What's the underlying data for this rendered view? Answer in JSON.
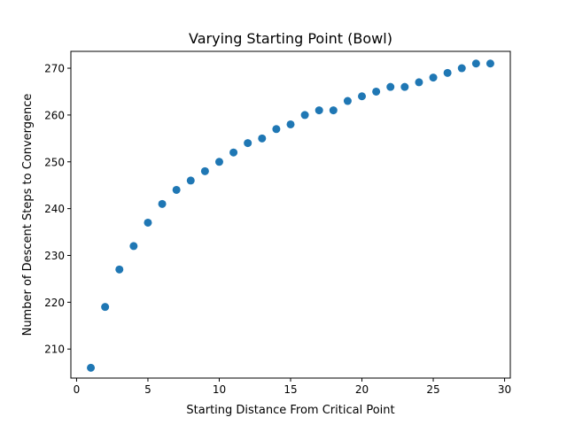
{
  "chart_data": {
    "type": "scatter",
    "title": "Varying Starting Point (Bowl)",
    "xlabel": "Starting Distance From Critical Point",
    "ylabel": "Number of Descent Steps to Convergence",
    "xlim": [
      -0.4,
      30.4
    ],
    "ylim": [
      203.8,
      273.6
    ],
    "xticks": [
      0,
      5,
      10,
      15,
      20,
      25,
      30
    ],
    "yticks": [
      210,
      220,
      230,
      240,
      250,
      260,
      270
    ],
    "grid": false,
    "marker_color": "#1f77b4",
    "x": [
      1,
      2,
      3,
      4,
      5,
      6,
      7,
      8,
      9,
      10,
      11,
      12,
      13,
      14,
      15,
      16,
      17,
      18,
      19,
      20,
      21,
      22,
      23,
      24,
      25,
      26,
      27,
      28,
      29
    ],
    "y": [
      206,
      219,
      227,
      232,
      237,
      241,
      244,
      246,
      248,
      250,
      252,
      254,
      255,
      257,
      258,
      260,
      261,
      261,
      263,
      264,
      265,
      266,
      266,
      267,
      268,
      269,
      270,
      271,
      271
    ]
  }
}
